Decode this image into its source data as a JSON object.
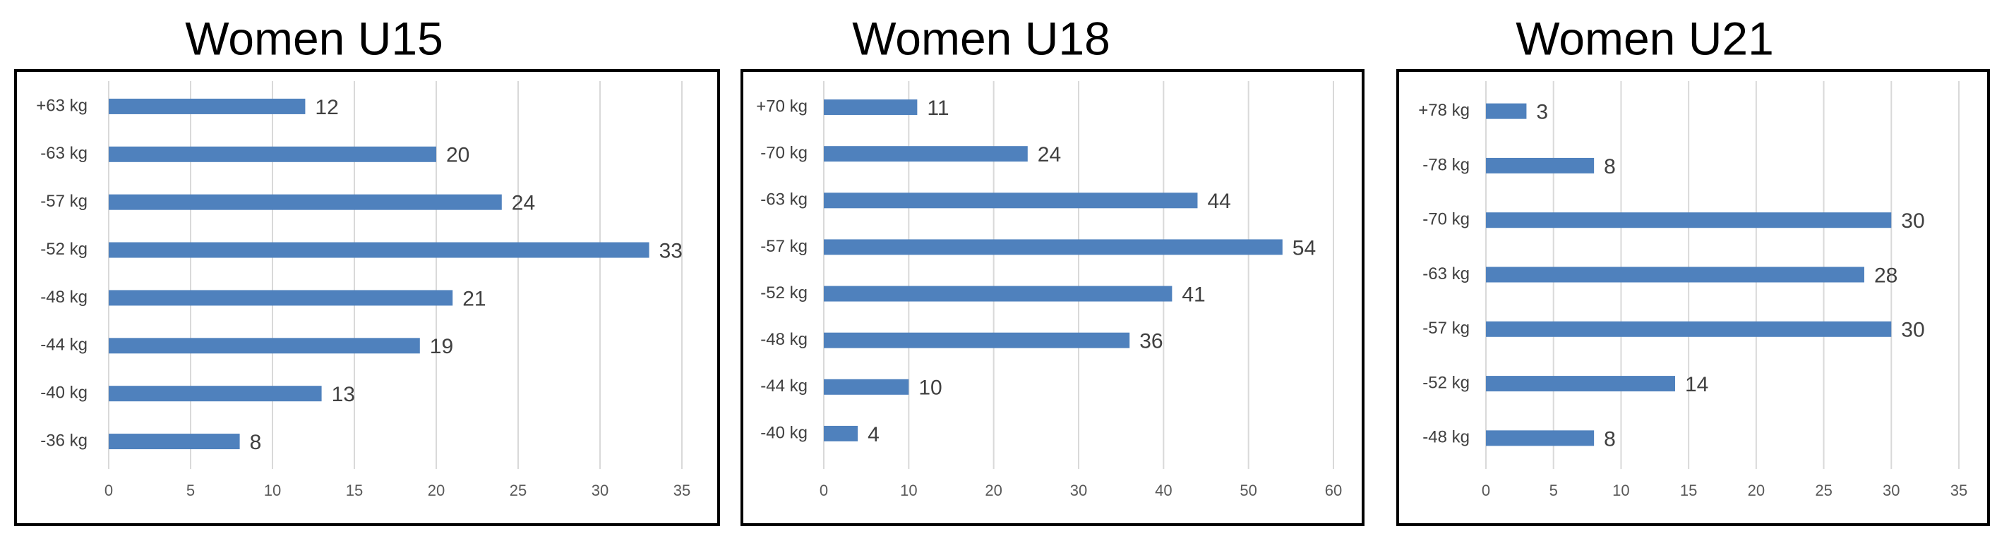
{
  "chart_data": [
    {
      "type": "barh",
      "title": "Women U15",
      "color": "#4f81bd",
      "grid": true,
      "categories": [
        "+63 kg",
        "-63 kg",
        "-57 kg",
        "-52 kg",
        "-48 kg",
        "-44 kg",
        "-40 kg",
        "-36 kg"
      ],
      "values": [
        12,
        20,
        24,
        33,
        21,
        19,
        13,
        8
      ],
      "xlim": [
        0,
        35
      ],
      "xticks": [
        0,
        5,
        10,
        15,
        20,
        25,
        30,
        35
      ]
    },
    {
      "type": "barh",
      "title": "Women U18",
      "color": "#4f81bd",
      "grid": true,
      "categories": [
        "+70 kg",
        "-70 kg",
        "-63 kg",
        "-57 kg",
        "-52 kg",
        "-48 kg",
        "-44 kg",
        "-40 kg"
      ],
      "values": [
        11,
        24,
        44,
        54,
        41,
        36,
        10,
        4
      ],
      "xlim": [
        0,
        60
      ],
      "xticks": [
        0,
        10,
        20,
        30,
        40,
        50,
        60
      ]
    },
    {
      "type": "barh",
      "title": "Women U21",
      "color": "#4f81bd",
      "grid": true,
      "categories": [
        "+78 kg",
        "-78 kg",
        "-70 kg",
        "-63 kg",
        "-57 kg",
        "-52 kg",
        "-48 kg"
      ],
      "values": [
        3,
        8,
        30,
        28,
        30,
        14,
        8
      ],
      "xlim": [
        0,
        35
      ],
      "xticks": [
        0,
        5,
        10,
        15,
        20,
        25,
        30,
        35
      ]
    }
  ]
}
